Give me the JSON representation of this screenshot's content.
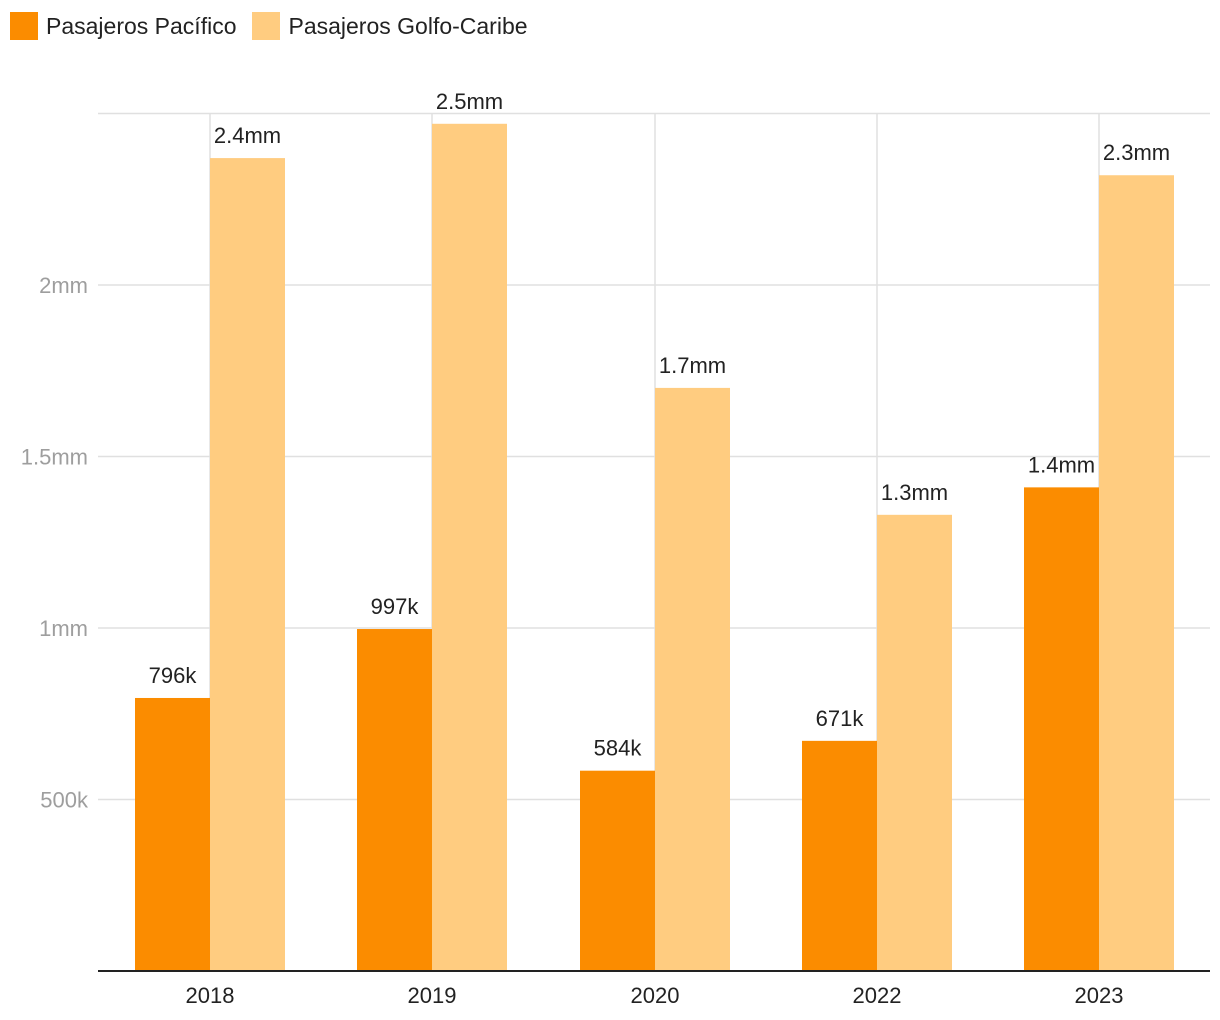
{
  "chart_data": {
    "type": "bar",
    "title": "",
    "xlabel": "",
    "ylabel": "",
    "categories": [
      "2018",
      "2019",
      "2020",
      "2022",
      "2023"
    ],
    "series": [
      {
        "name": "Pasajeros Pacífico",
        "color": "#fb8c00",
        "values": [
          796000,
          997000,
          584000,
          671000,
          1410000
        ],
        "labels": [
          "796k",
          "997k",
          "584k",
          "671k",
          "1.4mm"
        ]
      },
      {
        "name": "Pasajeros Golfo-Caribe",
        "color": "#ffcc80",
        "values": [
          2370000,
          2470000,
          1700000,
          1330000,
          2320000
        ],
        "labels": [
          "2.4mm",
          "2.5mm",
          "1.7mm",
          "1.3mm",
          "2.3mm"
        ]
      }
    ],
    "y_ticks": [
      {
        "value": 500000,
        "label": "500k"
      },
      {
        "value": 1000000,
        "label": "1mm"
      },
      {
        "value": 1500000,
        "label": "1.5mm"
      },
      {
        "value": 2000000,
        "label": "2mm"
      }
    ],
    "ylim": [
      0,
      2500000
    ],
    "grid": true,
    "legend_position": "top-left"
  }
}
